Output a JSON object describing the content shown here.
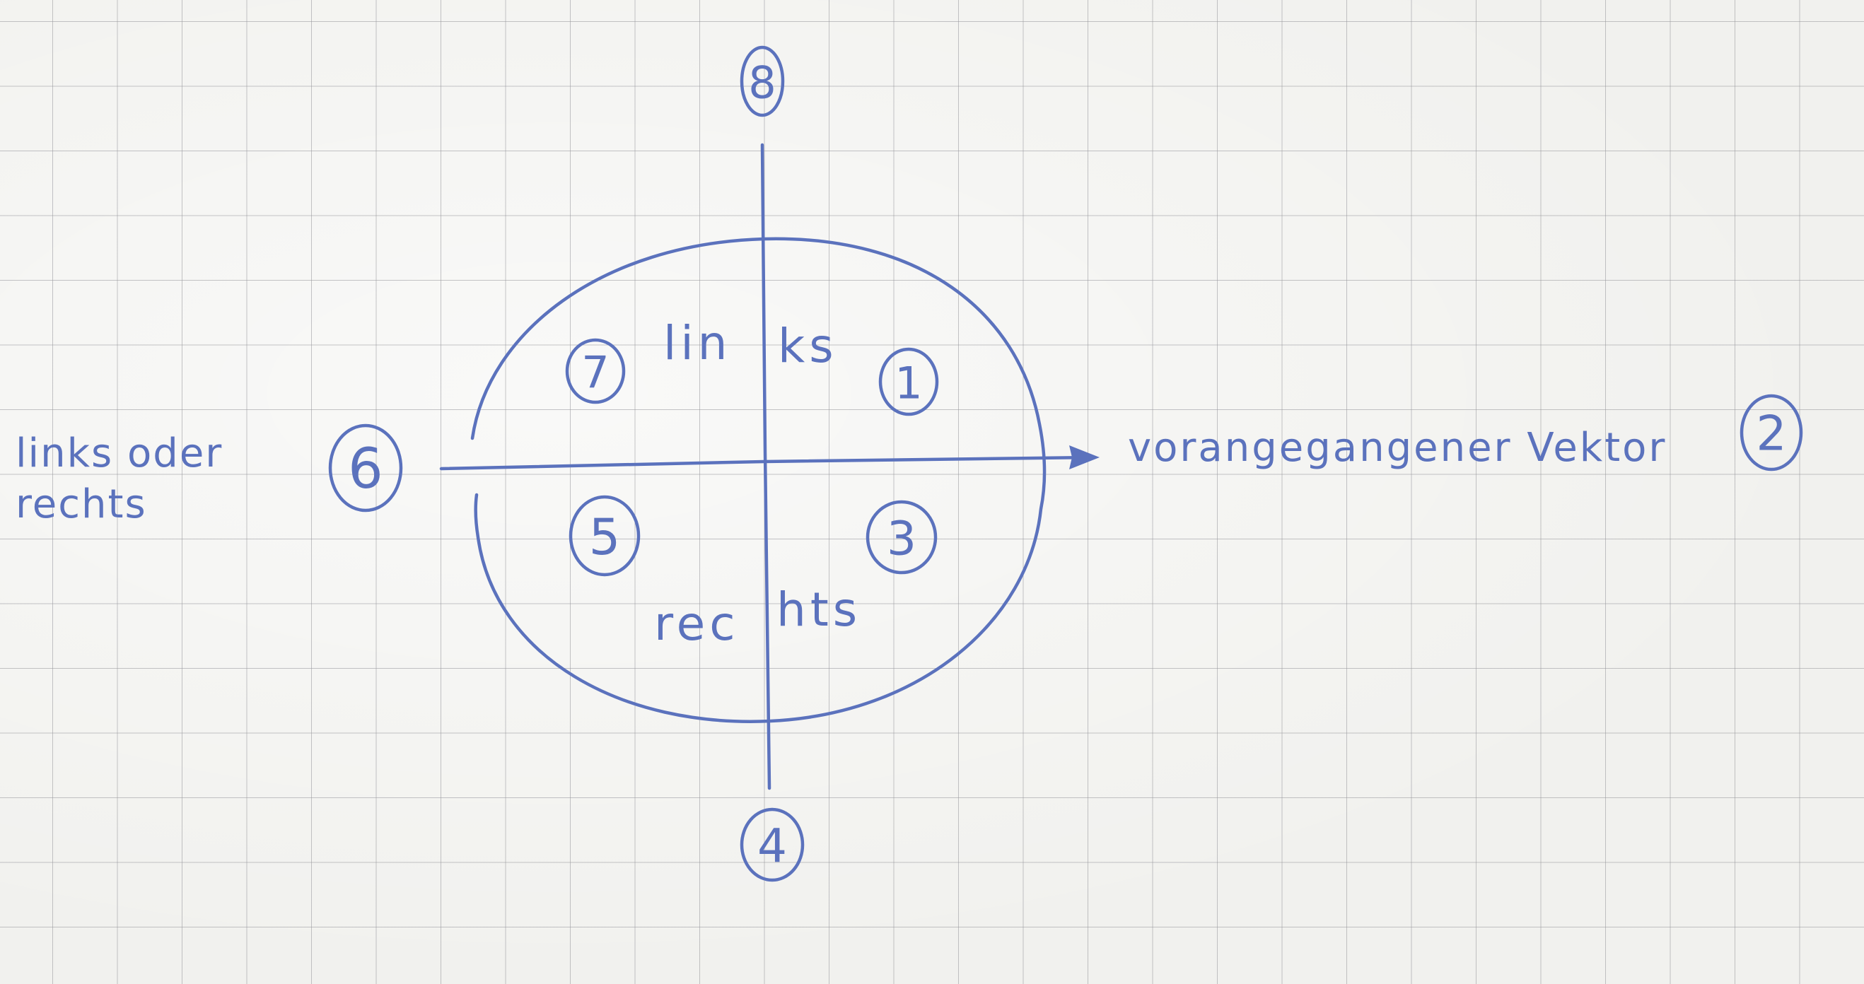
{
  "labels": {
    "upper_half": [
      "lin",
      "ks"
    ],
    "lower_half": [
      "rec",
      "hts"
    ],
    "left_side": [
      "links oder",
      "rechts"
    ],
    "arrow_label": "vorangegangener Vektor"
  },
  "markers": [
    {
      "key": "n1",
      "text": "1"
    },
    {
      "key": "n2",
      "text": "2"
    },
    {
      "key": "n3",
      "text": "3"
    },
    {
      "key": "n4",
      "text": "4"
    },
    {
      "key": "n5",
      "text": "5"
    },
    {
      "key": "n6",
      "text": "6"
    },
    {
      "key": "n7",
      "text": "7"
    },
    {
      "key": "n8",
      "text": "8"
    }
  ],
  "colors": {
    "ink": "#5b72bd",
    "paper": "#f1f1ee",
    "grid": "#96969b"
  }
}
